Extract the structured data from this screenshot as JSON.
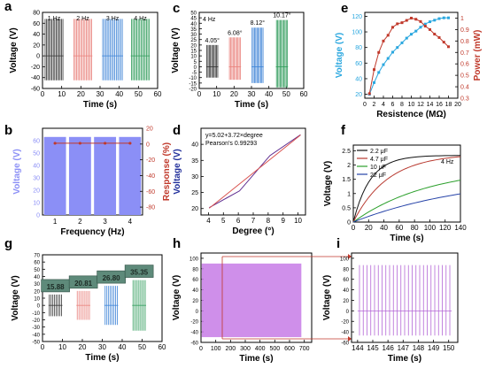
{
  "chart_data": [
    {
      "panel": "a",
      "type": "line",
      "xlabel": "Time (s)",
      "ylabel": "Voltage (V)",
      "xticks": [
        0,
        10,
        20,
        30,
        40,
        50,
        60
      ],
      "yticks": [
        -60,
        -40,
        -20,
        0,
        20,
        40,
        60,
        80
      ],
      "xlim": [
        0,
        60
      ],
      "ylim": [
        -60,
        80
      ],
      "annotations": [
        "1 Hz",
        "2 Hz",
        "3 Hz",
        "4 Hz"
      ],
      "series": [
        {
          "x_range": [
            1,
            11
          ],
          "peak_max": 68,
          "peak_min": -45,
          "color": "#333333"
        },
        {
          "x_range": [
            16,
            26
          ],
          "peak_max": 68,
          "peak_min": -45,
          "color": "#e9807b"
        },
        {
          "x_range": [
            31,
            42
          ],
          "peak_max": 68,
          "peak_min": -45,
          "color": "#3b82d6"
        },
        {
          "x_range": [
            46,
            56
          ],
          "peak_max": 68,
          "peak_min": -45,
          "color": "#2e9b5a"
        }
      ]
    },
    {
      "panel": "b",
      "type": "bar",
      "categories": [
        "1",
        "2",
        "3",
        "4"
      ],
      "values": [
        63,
        63,
        63,
        63
      ],
      "response_values": [
        1,
        1,
        1,
        1
      ],
      "xlabel": "Frequency (Hz)",
      "ylabel": "Voltage (V)",
      "y2label": "Response (%)",
      "yticks": [
        0,
        10,
        20,
        30,
        40,
        50,
        60
      ],
      "y2ticks": [
        -80,
        -60,
        -40,
        -20,
        0,
        20
      ],
      "ylim": [
        0,
        70
      ],
      "y2lim": [
        -90,
        20
      ]
    },
    {
      "panel": "c",
      "type": "line",
      "xlabel": "Time (s)",
      "ylabel": "Voltage (V)",
      "xticks": [
        0,
        10,
        20,
        30,
        40,
        50,
        60
      ],
      "yticks": [
        -20,
        -15,
        -10,
        -5,
        0,
        5,
        10,
        15,
        20,
        25,
        30,
        35,
        40,
        45,
        50
      ],
      "xlim": [
        0,
        60
      ],
      "ylim": [
        -20,
        50
      ],
      "annotations": [
        "4 Hz",
        "4.05°",
        "6.08°",
        "8.12°",
        "10.17°"
      ],
      "series": [
        {
          "x_range": [
            4,
            11
          ],
          "peak_max": 20,
          "peak_min": -10,
          "color": "#333333"
        },
        {
          "x_range": [
            17,
            24
          ],
          "peak_max": 27,
          "peak_min": -12,
          "color": "#e9807b"
        },
        {
          "x_range": [
            30,
            37
          ],
          "peak_max": 36,
          "peak_min": -15,
          "color": "#3b82d6"
        },
        {
          "x_range": [
            44,
            51
          ],
          "peak_max": 43,
          "peak_min": -19,
          "color": "#2e9b5a"
        }
      ]
    },
    {
      "panel": "d",
      "type": "line",
      "xlabel": "Degree (°)",
      "ylabel": "Voltage (V)",
      "xticks": [
        4,
        5,
        6,
        7,
        8,
        9,
        10
      ],
      "yticks": [
        20,
        25,
        30,
        35,
        40
      ],
      "xlim": [
        3.5,
        10.5
      ],
      "ylim": [
        18,
        45
      ],
      "annotations": [
        "y=5.02+3.72×degree",
        "Pearson's 0.99293"
      ],
      "series": [
        {
          "x": [
            4.05,
            6.08,
            8.12,
            10.17
          ],
          "y": [
            20.3,
            25.5,
            36.5,
            43.0
          ],
          "color": "#5c2a8e"
        },
        {
          "x": [
            4.05,
            10.17
          ],
          "y": [
            20.1,
            42.9
          ],
          "color": "#d9534f"
        }
      ]
    },
    {
      "panel": "e",
      "type": "line",
      "xlabel": "Resistence (MΩ)",
      "ylabel": "Voltage (V)",
      "y2label": "Power (mW)",
      "xticks": [
        0,
        2,
        4,
        6,
        8,
        10,
        12,
        14,
        16,
        18,
        20
      ],
      "yticks": [
        20,
        40,
        60,
        80,
        100,
        120
      ],
      "y2ticks": [
        0.3,
        0.4,
        0.5,
        0.6,
        0.7,
        0.8,
        0.9,
        1.0
      ],
      "xlim": [
        0,
        20
      ],
      "ylim": [
        15,
        125
      ],
      "y2lim": [
        0.3,
        1.05
      ],
      "series": [
        {
          "name": "Voltage",
          "x": [
            1,
            2,
            3,
            4,
            5,
            6,
            7,
            8,
            9,
            10,
            11,
            12,
            13,
            14,
            15,
            16,
            17,
            18
          ],
          "y": [
            20,
            35,
            48,
            58,
            66,
            74,
            80,
            86,
            92,
            97,
            101,
            106,
            110,
            113,
            115,
            117,
            118,
            118
          ],
          "color": "#2aa7df"
        },
        {
          "name": "Power",
          "x": [
            1,
            2,
            3,
            4,
            5,
            6,
            7,
            8,
            9,
            10,
            11,
            12,
            13,
            14,
            15,
            16,
            17,
            18
          ],
          "y": [
            0.34,
            0.55,
            0.7,
            0.8,
            0.85,
            0.92,
            0.95,
            0.96,
            0.98,
            1.0,
            0.99,
            0.97,
            0.93,
            0.9,
            0.86,
            0.83,
            0.79,
            0.75
          ],
          "color": "#c0392b"
        }
      ]
    },
    {
      "panel": "f",
      "type": "line",
      "xlabel": "Time (s)",
      "ylabel": "Voltage (V)",
      "xticks": [
        0,
        20,
        40,
        60,
        80,
        100,
        120,
        140
      ],
      "yticks": [
        0.0,
        0.5,
        1.0,
        1.5,
        2.0,
        2.5
      ],
      "xlim": [
        0,
        140
      ],
      "ylim": [
        0,
        2.7
      ],
      "annotations": [
        "4 Hz"
      ],
      "series": [
        {
          "name": "2.2 μF",
          "vmax": 2.34,
          "tau": 22,
          "color": "#111111"
        },
        {
          "name": "4.7 μF",
          "vmax": 2.4,
          "tau": 45,
          "color": "#b8392f"
        },
        {
          "name": "10 μF",
          "vmax": 1.95,
          "tau": 100,
          "color": "#2ca02c"
        },
        {
          "name": "22 μF",
          "vmax": 1.7,
          "tau": 160,
          "color": "#2643a8"
        }
      ]
    },
    {
      "panel": "g",
      "type": "line",
      "xlabel": "Time (s)",
      "ylabel": "Voltage (V)",
      "xticks": [
        0,
        10,
        20,
        30,
        40,
        50,
        60
      ],
      "yticks": [
        -50,
        -40,
        -30,
        -20,
        -10,
        0,
        10,
        20,
        30,
        40,
        50,
        60,
        70
      ],
      "xlim": [
        0,
        60
      ],
      "ylim": [
        -50,
        70
      ],
      "annotations": [
        "15.88",
        "20.81",
        "26.80",
        "35.35"
      ],
      "series": [
        {
          "x_range": [
            3,
            10
          ],
          "peak_max": 15,
          "peak_min": -15,
          "color": "#333333"
        },
        {
          "x_range": [
            17,
            24
          ],
          "peak_max": 20,
          "peak_min": -20,
          "color": "#e9807b"
        },
        {
          "x_range": [
            31,
            38
          ],
          "peak_max": 27,
          "peak_min": -27,
          "color": "#3b82d6"
        },
        {
          "x_range": [
            45,
            52
          ],
          "peak_max": 35,
          "peak_min": -35,
          "color": "#2e9b5a"
        }
      ]
    },
    {
      "panel": "h",
      "type": "area",
      "xlabel": "Time (s)",
      "ylabel": "Voltage (V)",
      "xticks": [
        0,
        100,
        200,
        300,
        400,
        500,
        600,
        700
      ],
      "yticks": [
        -60,
        -40,
        -20,
        0,
        20,
        40,
        60,
        80,
        100
      ],
      "xlim": [
        0,
        750
      ],
      "ylim": [
        -60,
        110
      ],
      "series": [
        {
          "x_range": [
            5,
            680
          ],
          "peak_max": 90,
          "peak_min": -50,
          "color": "#c77be6"
        }
      ],
      "zoom_range": [
        144,
        150
      ]
    },
    {
      "panel": "i",
      "type": "line",
      "xlabel": "Time (s)",
      "ylabel": "Voltage (V)",
      "xticks": [
        144,
        145,
        146,
        147,
        148,
        149,
        150
      ],
      "yticks": [
        -60,
        -40,
        -20,
        0,
        20,
        40,
        60,
        80,
        100
      ],
      "xlim": [
        143.6,
        150.6
      ],
      "ylim": [
        -60,
        110
      ],
      "series": [
        {
          "x_range": [
            144,
            150.2
          ],
          "spikes": 25,
          "peak_max": 87,
          "peak_min": -47,
          "color": "#b467d6"
        }
      ]
    }
  ]
}
